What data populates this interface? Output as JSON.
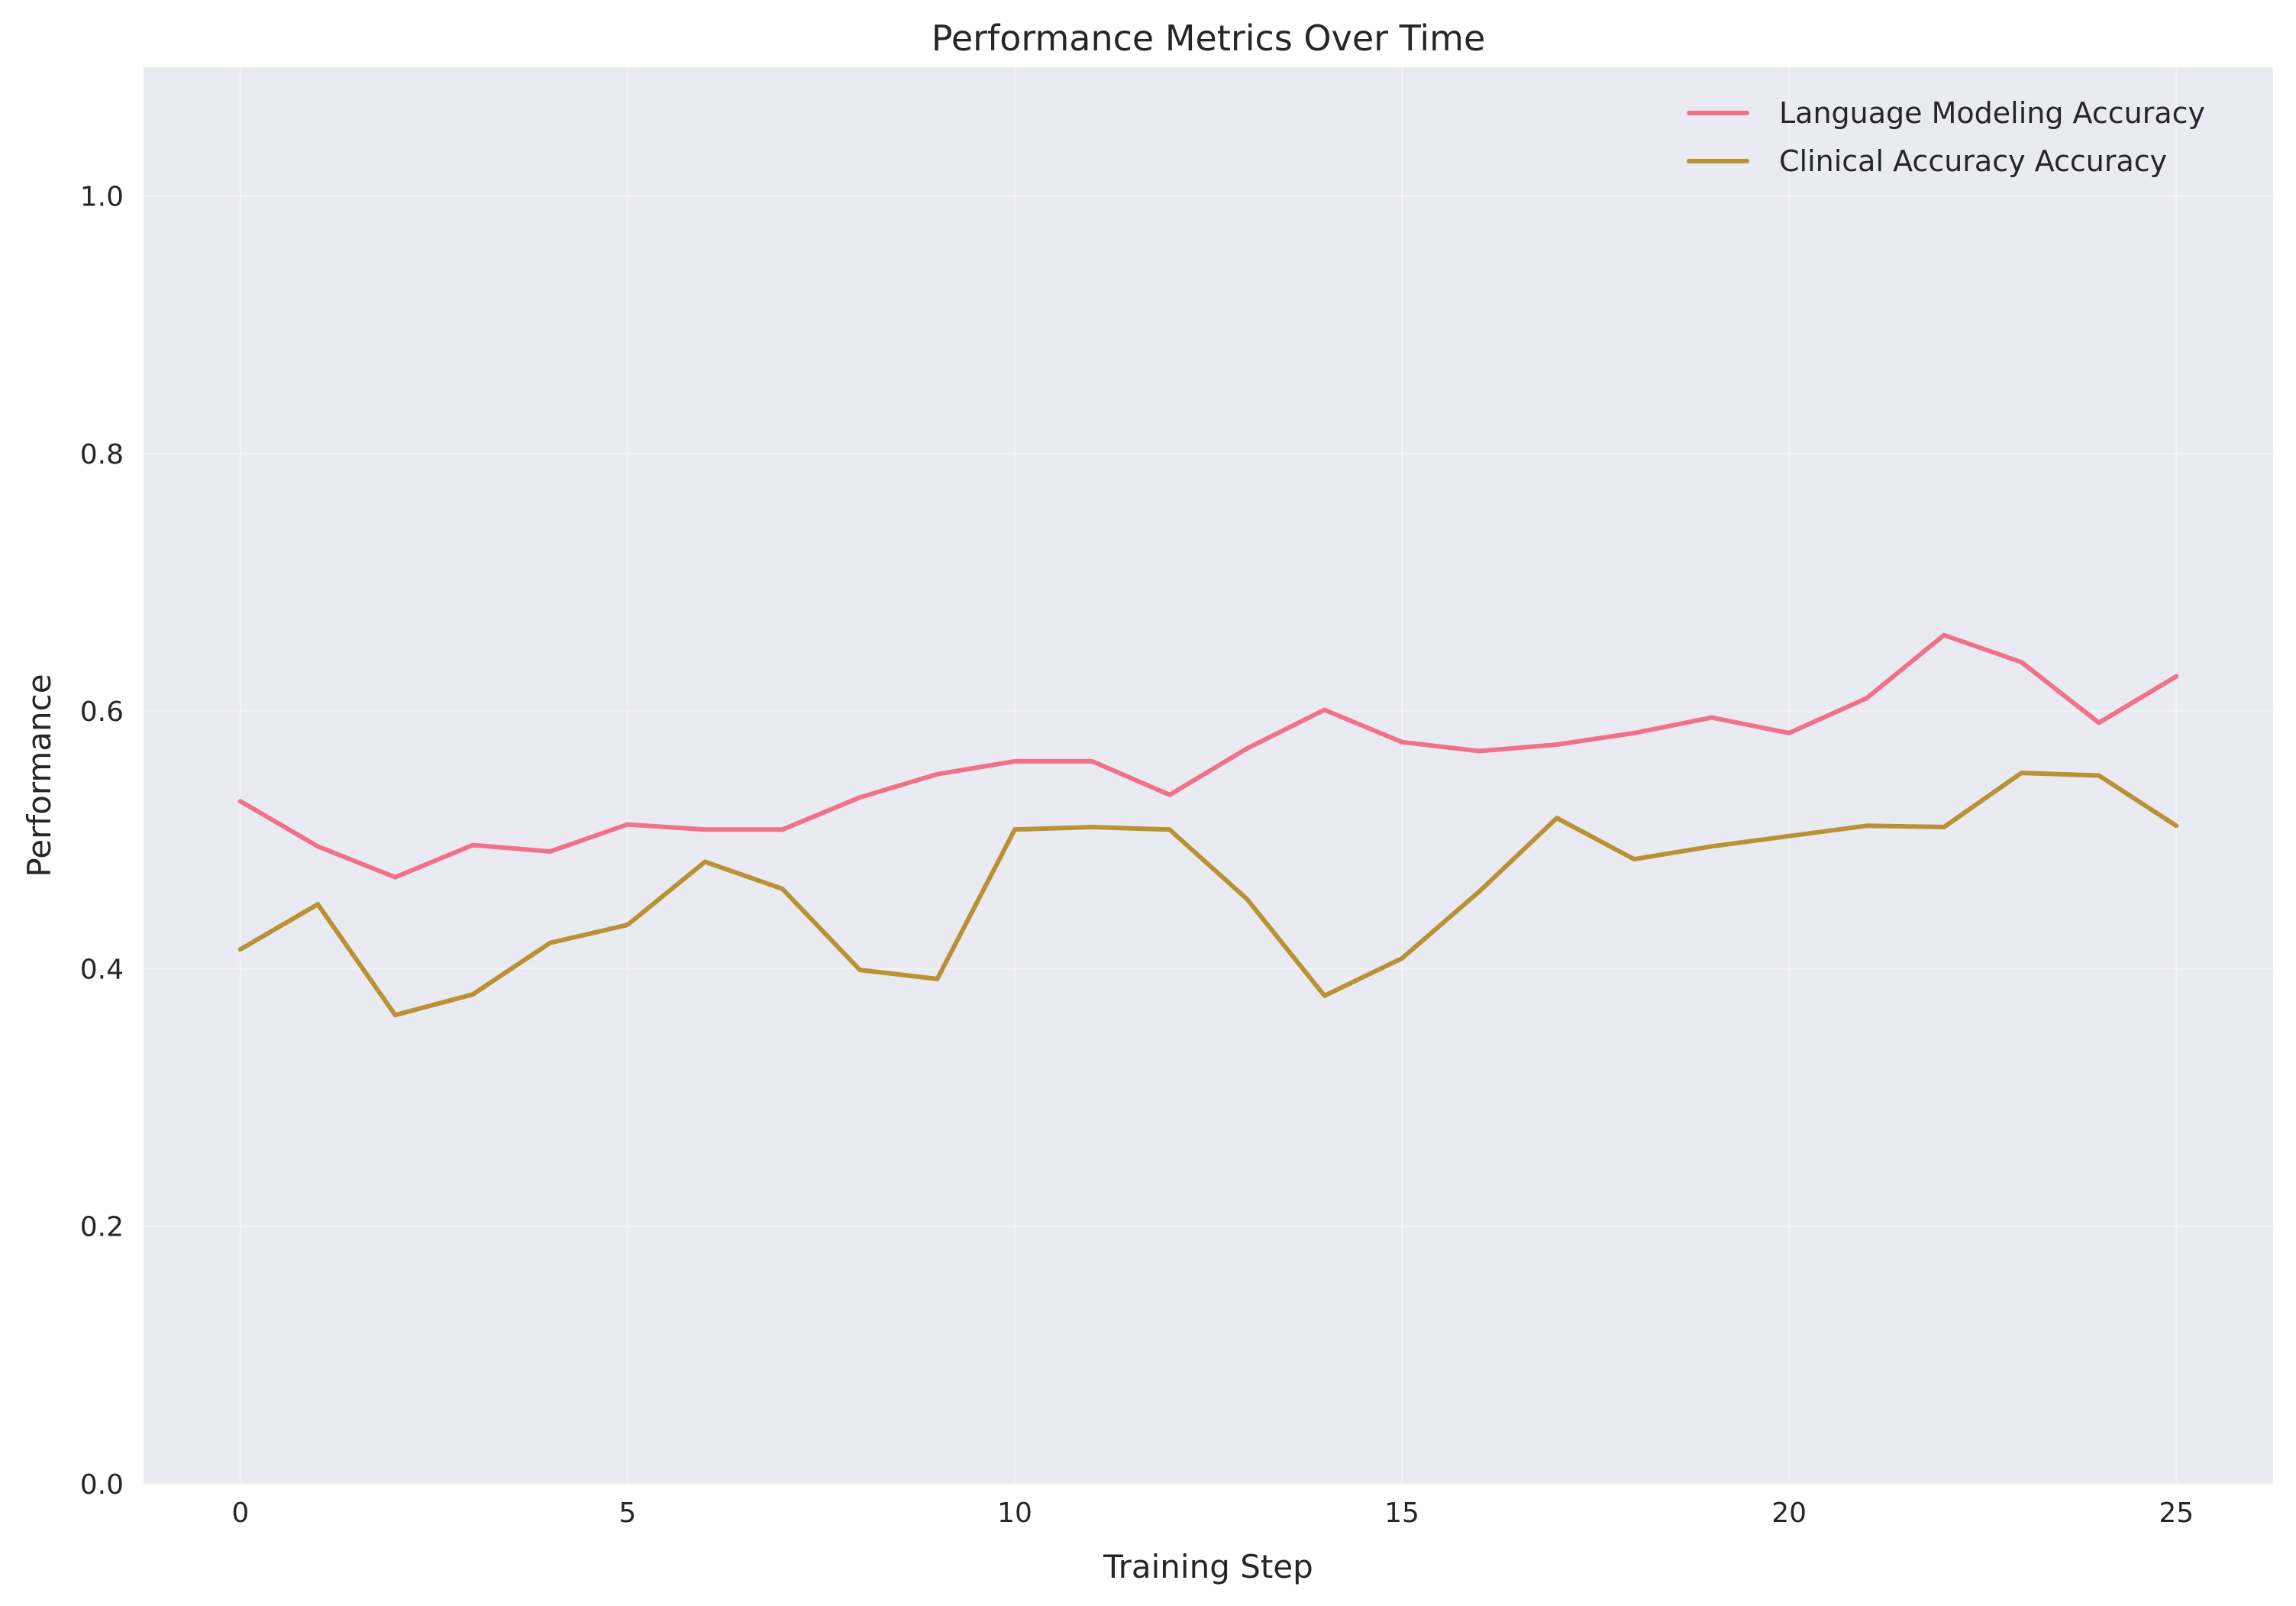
{
  "chart_data": {
    "type": "line",
    "title": "Performance Metrics Over Time",
    "xlabel": "Training Step",
    "ylabel": "Performance",
    "xlim": [
      -1.25,
      26.25
    ],
    "ylim": [
      0.0,
      1.1
    ],
    "xticks": [
      0,
      5,
      10,
      15,
      20,
      25
    ],
    "yticks": [
      0.0,
      0.2,
      0.4,
      0.6,
      0.8,
      1.0
    ],
    "ytick_labels": [
      "0.0",
      "0.2",
      "0.4",
      "0.6",
      "0.8",
      "1.0"
    ],
    "grid": true,
    "background": "#eaeaf2",
    "legend_position": "top-right",
    "x": [
      0,
      1,
      2,
      3,
      4,
      5,
      6,
      7,
      8,
      9,
      10,
      11,
      12,
      13,
      14,
      15,
      16,
      17,
      18,
      19,
      20,
      21,
      22,
      23,
      24,
      25
    ],
    "series": [
      {
        "name": "Language Modeling Accuracy",
        "color": "#f0728a",
        "values": [
          0.53,
          0.495,
          0.471,
          0.496,
          0.491,
          0.512,
          0.508,
          0.508,
          0.533,
          0.551,
          0.561,
          0.561,
          0.535,
          0.571,
          0.601,
          0.576,
          0.569,
          0.574,
          0.583,
          0.595,
          0.583,
          0.61,
          0.659,
          0.638,
          0.591,
          0.627
        ]
      },
      {
        "name": "Clinical Accuracy Accuracy",
        "color": "#b99236",
        "values": [
          0.415,
          0.45,
          0.364,
          0.38,
          0.42,
          0.434,
          0.483,
          0.462,
          0.399,
          0.392,
          0.508,
          0.51,
          0.508,
          0.454,
          0.379,
          0.408,
          0.46,
          0.517,
          0.485,
          0.495,
          0.503,
          0.511,
          0.51,
          0.552,
          0.55,
          0.511
        ]
      }
    ]
  }
}
